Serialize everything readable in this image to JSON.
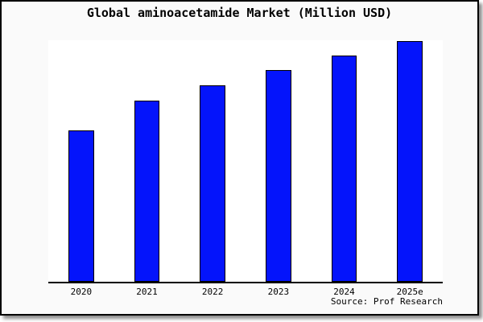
{
  "figure": {
    "background": "#fafafa",
    "plot_background": "#ffffff",
    "frame_color": "#000000"
  },
  "chart_data": {
    "type": "bar",
    "title": "Global aminoacetamide Market (Million USD)",
    "categories": [
      "2020",
      "2021",
      "2022",
      "2023",
      "2024",
      "2025e"
    ],
    "values": [
      62.7,
      75.0,
      81.5,
      87.6,
      93.6,
      99.8
    ],
    "xlabel": "",
    "ylabel": "",
    "ylim": [
      0,
      100
    ],
    "y_axis_labels_shown": false,
    "grid": false,
    "legend": false,
    "bar_color": "#0414fb",
    "bar_edge_color": "#000000"
  },
  "source": {
    "label": "Source: Prof Research"
  }
}
